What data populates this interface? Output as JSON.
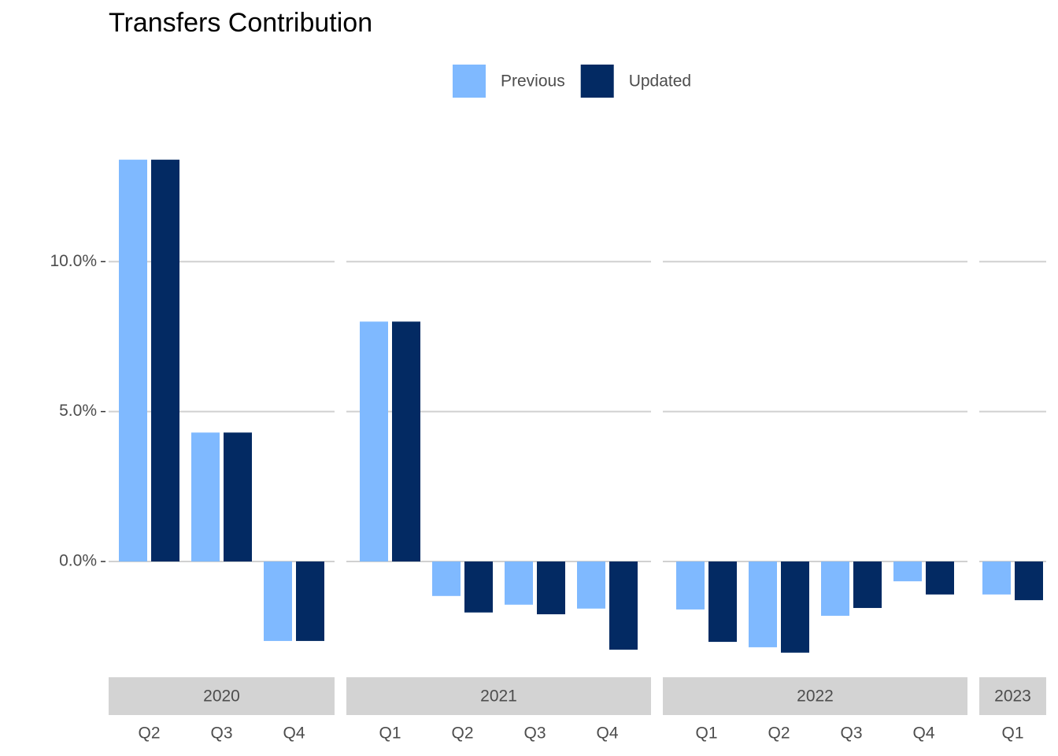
{
  "chart_data": {
    "type": "bar",
    "title": "Transfers Contribution",
    "facets": [
      {
        "label": "2020",
        "categories": [
          "Q2",
          "Q3",
          "Q4"
        ]
      },
      {
        "label": "2021",
        "categories": [
          "Q1",
          "Q2",
          "Q3",
          "Q4"
        ]
      },
      {
        "label": "2022",
        "categories": [
          "Q1",
          "Q2",
          "Q3",
          "Q4"
        ]
      },
      {
        "label": "2023",
        "categories": [
          "Q1"
        ]
      }
    ],
    "series": [
      {
        "name": "Previous",
        "color": "#7fb9ff",
        "values": [
          13.4,
          4.3,
          -2.65,
          8.0,
          -1.15,
          -1.44,
          -1.57,
          -1.6,
          -2.86,
          -1.81,
          -0.66,
          -1.1
        ]
      },
      {
        "name": "Updated",
        "color": "#032a63",
        "values": [
          13.4,
          4.3,
          -2.65,
          8.0,
          -1.7,
          -1.76,
          -2.94,
          -2.68,
          -3.04,
          -1.55,
          -1.1,
          -1.29
        ]
      }
    ],
    "ylim": [
      -3.86,
      14.26
    ],
    "yticks": [
      {
        "value": 0,
        "label": "0.0%"
      },
      {
        "value": 5,
        "label": "5.0%"
      },
      {
        "value": 10,
        "label": "10.0%"
      }
    ],
    "grid": true,
    "legend": "top"
  }
}
